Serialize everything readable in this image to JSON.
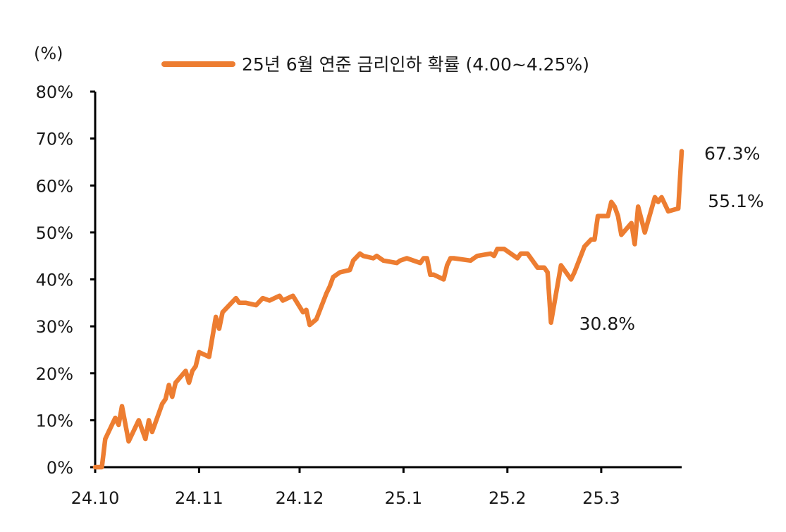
{
  "chart_data": {
    "type": "line",
    "title": "",
    "xlabel": "",
    "ylabel": "(%)",
    "ylim": [
      0,
      80
    ],
    "yticks": [
      0,
      10,
      20,
      30,
      40,
      50,
      60,
      70,
      80
    ],
    "ytick_labels": [
      "0%",
      "10%",
      "20%",
      "30%",
      "40%",
      "50%",
      "60%",
      "70%",
      "80%"
    ],
    "xlim": [
      "2024-10-01",
      "2025-03-25"
    ],
    "xticks": [
      "2024-10-01",
      "2024-11-01",
      "2024-12-01",
      "2025-01-01",
      "2025-02-01",
      "2025-03-01"
    ],
    "xtick_labels": [
      "24.10",
      "24.11",
      "24.12",
      "25.1",
      "25.2",
      "25.3"
    ],
    "grid": false,
    "legend_position": "top",
    "series": [
      {
        "name": "25년 6월 연준 금리인하 확률 (4.00~4.25%)",
        "color": "#ED7D31",
        "points": [
          [
            "2024-10-01",
            0
          ],
          [
            "2024-10-03",
            0
          ],
          [
            "2024-10-04",
            6
          ],
          [
            "2024-10-07",
            10.5
          ],
          [
            "2024-10-08",
            9
          ],
          [
            "2024-10-09",
            13
          ],
          [
            "2024-10-11",
            5.5
          ],
          [
            "2024-10-14",
            10
          ],
          [
            "2024-10-16",
            6
          ],
          [
            "2024-10-17",
            10
          ],
          [
            "2024-10-18",
            7.5
          ],
          [
            "2024-10-21",
            13.5
          ],
          [
            "2024-10-22",
            14.5
          ],
          [
            "2024-10-23",
            17.5
          ],
          [
            "2024-10-24",
            15
          ],
          [
            "2024-10-25",
            18
          ],
          [
            "2024-10-28",
            20.5
          ],
          [
            "2024-10-29",
            18
          ],
          [
            "2024-10-30",
            20.5
          ],
          [
            "2024-10-31",
            21.5
          ],
          [
            "2024-11-01",
            24.5
          ],
          [
            "2024-11-04",
            23.5
          ],
          [
            "2024-11-06",
            32
          ],
          [
            "2024-11-07",
            29.5
          ],
          [
            "2024-11-08",
            33
          ],
          [
            "2024-11-12",
            36
          ],
          [
            "2024-11-13",
            35
          ],
          [
            "2024-11-15",
            35
          ],
          [
            "2024-11-18",
            34.5
          ],
          [
            "2024-11-20",
            36
          ],
          [
            "2024-11-22",
            35.5
          ],
          [
            "2024-11-25",
            36.5
          ],
          [
            "2024-11-26",
            35.5
          ],
          [
            "2024-11-29",
            36.5
          ],
          [
            "2024-12-02",
            33
          ],
          [
            "2024-12-03",
            33.5
          ],
          [
            "2024-12-04",
            30.3
          ],
          [
            "2024-12-06",
            31.5
          ],
          [
            "2024-12-09",
            37
          ],
          [
            "2024-12-10",
            38.5
          ],
          [
            "2024-12-11",
            40.5
          ],
          [
            "2024-12-13",
            41.5
          ],
          [
            "2024-12-16",
            42
          ],
          [
            "2024-12-17",
            44
          ],
          [
            "2024-12-19",
            45.5
          ],
          [
            "2024-12-20",
            45
          ],
          [
            "2024-12-23",
            44.5
          ],
          [
            "2024-12-24",
            45
          ],
          [
            "2024-12-26",
            44
          ],
          [
            "2024-12-30",
            43.5
          ],
          [
            "2024-12-31",
            44
          ],
          [
            "2025-01-02",
            44.5
          ],
          [
            "2025-01-06",
            43.5
          ],
          [
            "2025-01-07",
            44.5
          ],
          [
            "2025-01-08",
            44.5
          ],
          [
            "2025-01-09",
            41
          ],
          [
            "2025-01-10",
            41
          ],
          [
            "2025-01-13",
            40
          ],
          [
            "2025-01-14",
            43
          ],
          [
            "2025-01-15",
            44.5
          ],
          [
            "2025-01-16",
            44.5
          ],
          [
            "2025-01-21",
            44
          ],
          [
            "2025-01-22",
            44.5
          ],
          [
            "2025-01-23",
            45
          ],
          [
            "2025-01-27",
            45.5
          ],
          [
            "2025-01-28",
            45
          ],
          [
            "2025-01-29",
            46.5
          ],
          [
            "2025-01-31",
            46.5
          ],
          [
            "2025-02-03",
            45
          ],
          [
            "2025-02-04",
            44.5
          ],
          [
            "2025-02-05",
            45.5
          ],
          [
            "2025-02-06",
            45.5
          ],
          [
            "2025-02-07",
            45.5
          ],
          [
            "2025-02-10",
            42.5
          ],
          [
            "2025-02-11",
            42.5
          ],
          [
            "2025-02-12",
            42.5
          ],
          [
            "2025-02-13",
            41.5
          ],
          [
            "2025-02-14",
            30.8
          ],
          [
            "2025-02-17",
            43
          ],
          [
            "2025-02-20",
            40
          ],
          [
            "2025-02-21",
            41.5
          ],
          [
            "2025-02-24",
            47
          ],
          [
            "2025-02-26",
            48.5
          ],
          [
            "2025-02-27",
            48.5
          ],
          [
            "2025-02-28",
            53.5
          ],
          [
            "2025-03-03",
            53.5
          ],
          [
            "2025-03-04",
            56.5
          ],
          [
            "2025-03-05",
            55.5
          ],
          [
            "2025-03-06",
            53.5
          ],
          [
            "2025-03-07",
            49.5
          ],
          [
            "2025-03-10",
            52
          ],
          [
            "2025-03-11",
            47.5
          ],
          [
            "2025-03-12",
            55.5
          ],
          [
            "2025-03-14",
            50
          ],
          [
            "2025-03-17",
            57.5
          ],
          [
            "2025-03-18",
            56.5
          ],
          [
            "2025-03-19",
            57.5
          ],
          [
            "2025-03-21",
            54.5
          ],
          [
            "2025-03-24",
            55.1
          ],
          [
            "2025-03-25",
            67.3
          ]
        ]
      }
    ],
    "annotations": [
      {
        "text": "67.3%",
        "date": "2025-03-25",
        "value": 67.3
      },
      {
        "text": "55.1%",
        "date": "2025-03-24",
        "value": 55.1
      },
      {
        "text": "30.8%",
        "date": "2025-02-14",
        "value": 30.8
      }
    ]
  }
}
